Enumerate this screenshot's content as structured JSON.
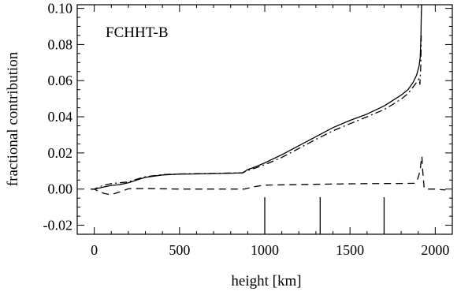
{
  "chart_data": {
    "type": "line",
    "title": "",
    "annotation": "FCHHT-B",
    "xlabel": "height  [km]",
    "ylabel": "fractional contribution",
    "xlim": [
      -100,
      2100
    ],
    "ylim": [
      -0.025,
      0.102
    ],
    "xticks": [
      0,
      500,
      1000,
      1500,
      2000
    ],
    "xtick_labels": [
      "0",
      "500",
      "1000",
      "1500",
      "2000"
    ],
    "yticks": [
      -0.02,
      0.0,
      0.02,
      0.04,
      0.06,
      0.08,
      0.1
    ],
    "ytick_labels": [
      "-0.02",
      "0.00",
      "0.02",
      "0.04",
      "0.06",
      "0.08",
      "0.10"
    ],
    "grid": false,
    "series": [
      {
        "style": "solid",
        "x": [
          -20,
          0,
          50,
          100,
          150,
          200,
          250,
          300,
          400,
          500,
          600,
          700,
          800,
          870,
          900,
          950,
          1000,
          1100,
          1200,
          1300,
          1400,
          1500,
          1600,
          1700,
          1750,
          1800,
          1840,
          1870,
          1890,
          1905,
          1912,
          1916,
          1918,
          1920
        ],
        "y": [
          0.0,
          0.0,
          0.001,
          0.002,
          0.0025,
          0.0035,
          0.005,
          0.0065,
          0.0078,
          0.0083,
          0.0084,
          0.0086,
          0.0088,
          0.009,
          0.0108,
          0.0125,
          0.0145,
          0.019,
          0.024,
          0.029,
          0.034,
          0.038,
          0.0415,
          0.046,
          0.049,
          0.052,
          0.055,
          0.059,
          0.063,
          0.068,
          0.073,
          0.085,
          0.095,
          0.102
        ]
      },
      {
        "style": "dash-dot",
        "x": [
          -20,
          0,
          50,
          100,
          150,
          200,
          250,
          300,
          400,
          500,
          600,
          700,
          800,
          870,
          900,
          950,
          1000,
          1100,
          1200,
          1300,
          1400,
          1500,
          1600,
          1700,
          1750,
          1800,
          1840,
          1870,
          1890,
          1905,
          1910,
          1915,
          1918
        ],
        "y": [
          0.0,
          0.0,
          0.002,
          0.003,
          0.0035,
          0.004,
          0.0055,
          0.0068,
          0.008,
          0.0084,
          0.0085,
          0.0087,
          0.0089,
          0.009,
          0.0103,
          0.0118,
          0.0135,
          0.0175,
          0.0225,
          0.0275,
          0.0322,
          0.0362,
          0.04,
          0.044,
          0.0468,
          0.0498,
          0.0528,
          0.0565,
          0.059,
          0.061,
          0.058,
          0.068,
          0.085
        ]
      },
      {
        "style": "dashed",
        "x": [
          -20,
          0,
          30,
          60,
          90,
          120,
          160,
          200,
          300,
          500,
          700,
          880,
          900,
          950,
          1000,
          1200,
          1400,
          1600,
          1800,
          1880,
          1895,
          1905,
          1912,
          1918,
          1922,
          1925,
          1935,
          1960,
          2000,
          2060
        ],
        "y": [
          0.0,
          0.0,
          -0.0015,
          -0.0025,
          -0.003,
          -0.0025,
          -0.0012,
          0.0002,
          0.0003,
          0.0,
          0.0,
          0.0,
          0.0005,
          0.0015,
          0.0022,
          0.0025,
          0.0028,
          0.003,
          0.0031,
          0.0032,
          0.005,
          0.008,
          0.011,
          0.016,
          0.018,
          0.012,
          0.0005,
          0.0,
          0.0,
          -0.0005
        ]
      }
    ],
    "vertical_markers_x": [
      1000,
      1325,
      1700
    ]
  }
}
